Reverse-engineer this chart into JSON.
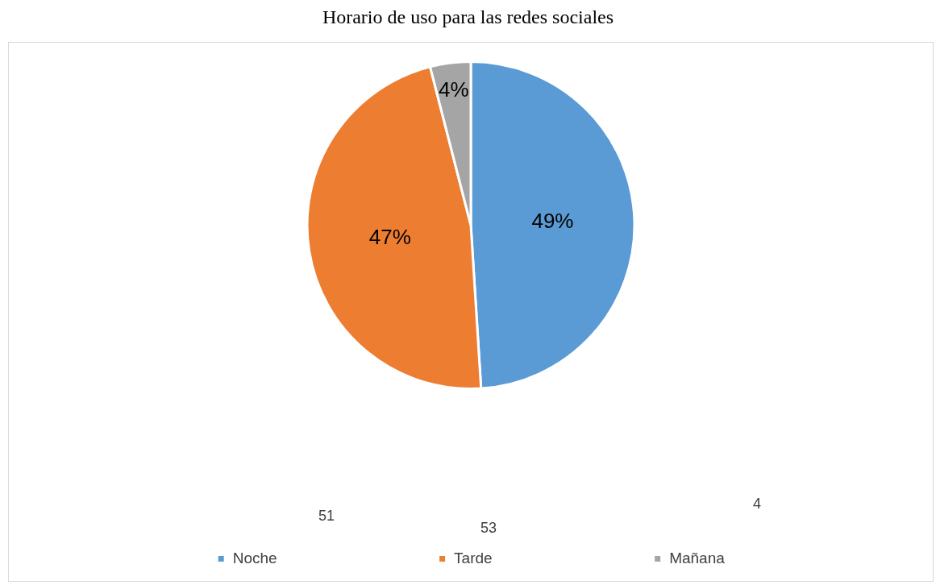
{
  "chart_data": {
    "type": "pie",
    "title": "Horario de uso para las redes sociales",
    "categories": [
      "Noche",
      "Tarde",
      "Mañana"
    ],
    "values": [
      49,
      47,
      4
    ],
    "colors": [
      "#5b9bd5",
      "#ed7d31",
      "#a5a5a5"
    ],
    "value_labels": [
      "49%",
      "47%",
      "4%"
    ],
    "legend": "bottom",
    "annotations": [
      "51",
      "53",
      "4"
    ]
  }
}
